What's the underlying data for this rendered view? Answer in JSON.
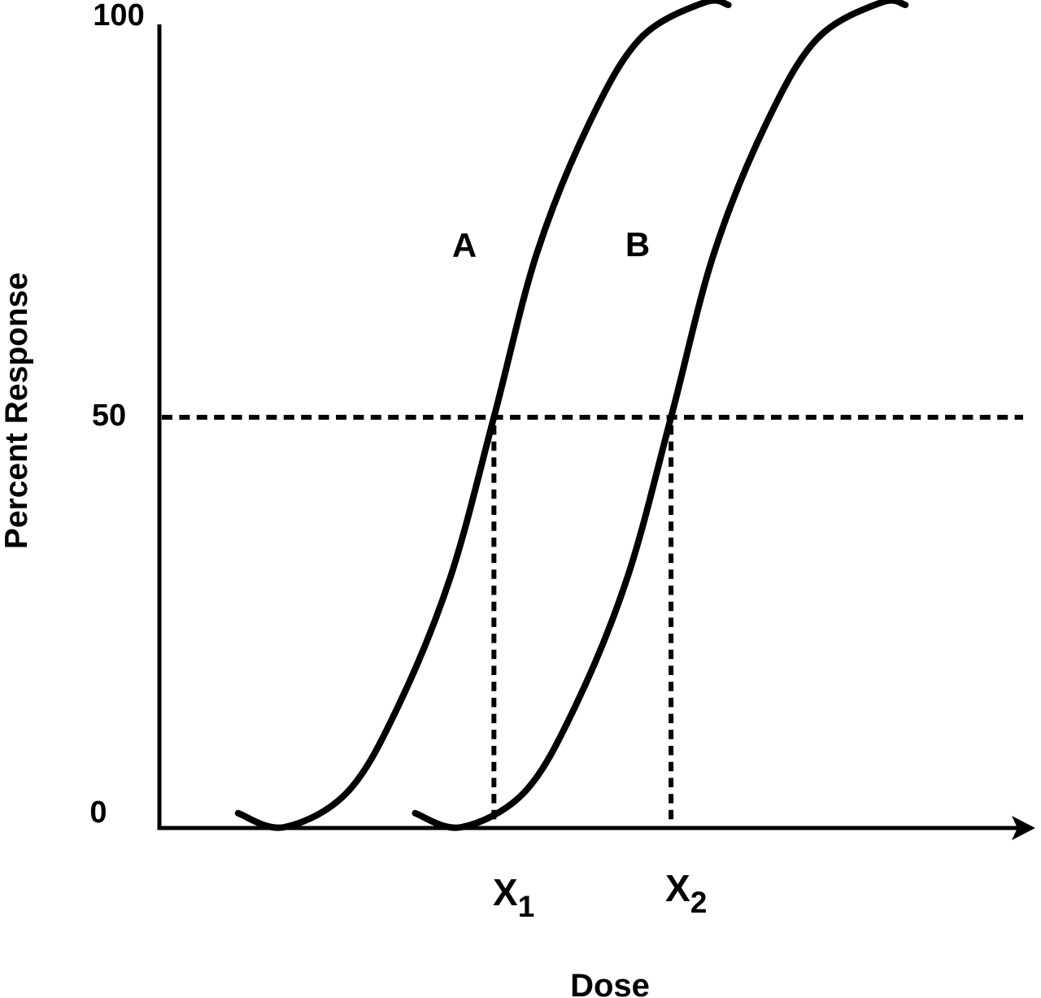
{
  "labels": {
    "y_axis_title": "Percent Response",
    "x_axis_title": "Dose",
    "y_tick_100": "100",
    "y_tick_50": "50",
    "y_tick_0": "0",
    "curve_a": "A",
    "curve_b": "B",
    "x1_base": "X",
    "x1_sub": "1",
    "x2_base": "X",
    "x2_sub": "2"
  },
  "colors": {
    "ink": "#000000",
    "background": "#ffffff"
  },
  "chart_data": {
    "type": "line",
    "title": "",
    "xlabel": "Dose",
    "ylabel": "Percent Response",
    "ylim": [
      0,
      100
    ],
    "y_ticks": [
      0,
      50,
      100
    ],
    "x_ticks": [
      {
        "label": "X1",
        "dose": 3.91
      },
      {
        "label": "X2",
        "dose": 5.98
      }
    ],
    "xlim_dose_units": [
      0,
      10.3
    ],
    "grid": false,
    "legend": "none; curves labeled inline A and B",
    "series": [
      {
        "name": "A",
        "midpoint_label": "X1",
        "midpoint_response_percent": 50,
        "points_dose_percent": [
          [
            0.92,
            1.8
          ],
          [
            1.46,
            0.1
          ],
          [
            2.2,
            4.4
          ],
          [
            2.79,
            14.8
          ],
          [
            3.4,
            30.5
          ],
          [
            3.91,
            50.0
          ],
          [
            4.41,
            69.9
          ],
          [
            5.02,
            85.7
          ],
          [
            5.62,
            96.1
          ],
          [
            6.37,
            100.5
          ],
          [
            6.65,
            100.2
          ]
        ]
      },
      {
        "name": "B",
        "midpoint_label": "X2",
        "midpoint_response_percent": 50,
        "points_dose_percent": [
          [
            2.99,
            1.8
          ],
          [
            3.53,
            0.1
          ],
          [
            4.27,
            4.4
          ],
          [
            4.86,
            14.8
          ],
          [
            5.47,
            30.5
          ],
          [
            5.98,
            50.0
          ],
          [
            6.48,
            69.9
          ],
          [
            7.09,
            85.7
          ],
          [
            7.69,
            96.1
          ],
          [
            8.44,
            100.5
          ],
          [
            8.72,
            100.2
          ]
        ]
      }
    ],
    "guides": {
      "horizontal_dashed_at_percent": 50,
      "vertical_dashed_at_doses": [
        3.91,
        5.98
      ]
    }
  }
}
